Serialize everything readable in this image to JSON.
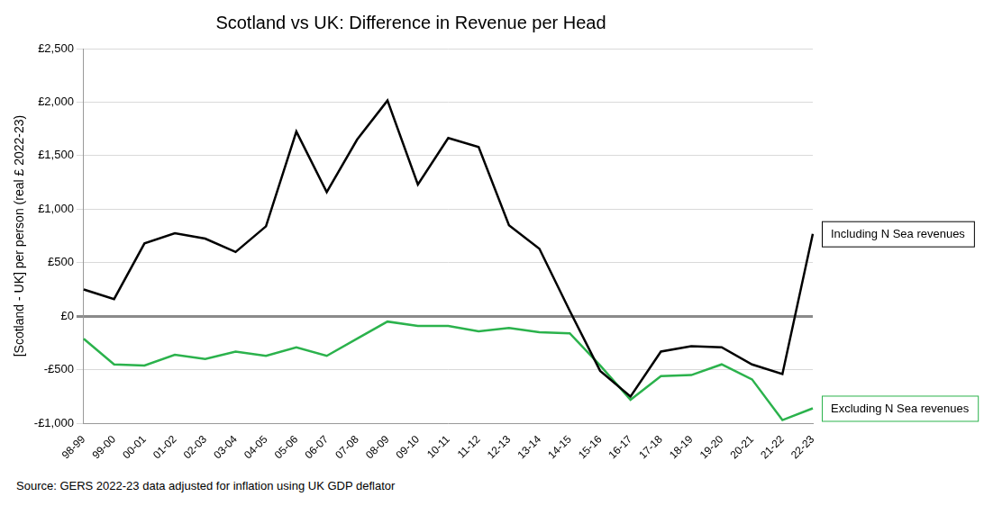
{
  "chart_data": {
    "type": "line",
    "title": "Scotland vs UK: Difference in Revenue per Head",
    "y_label": "[Scotland - UK] per person (real £ 2022-23)",
    "source": "Source: GERS 2022-23 data adjusted for inflation using UK GDP deflator",
    "categories": [
      "98-99",
      "99-00",
      "00-01",
      "01-02",
      "02-03",
      "03-04",
      "04-05",
      "05-06",
      "06-07",
      "07-08",
      "08-09",
      "09-10",
      "10-11",
      "11-12",
      "12-13",
      "13-14",
      "14-15",
      "15-16",
      "16-17",
      "17-18",
      "18-19",
      "19-20",
      "20-21",
      "21-22",
      "22-23"
    ],
    "series": [
      {
        "name": "Including N Sea revenues",
        "color": "#000000",
        "values": [
          250,
          160,
          680,
          775,
          725,
          600,
          840,
          1725,
          1160,
          1650,
          2015,
          1230,
          1665,
          1580,
          850,
          630,
          50,
          -510,
          -750,
          -330,
          -280,
          -290,
          -450,
          -540,
          770
        ]
      },
      {
        "name": "Excluding N Sea revenues",
        "color": "#2bb24c",
        "values": [
          -210,
          -450,
          -460,
          -360,
          -400,
          -330,
          -370,
          -290,
          -370,
          -210,
          -50,
          -90,
          -90,
          -140,
          -110,
          -150,
          -160,
          -460,
          -780,
          -560,
          -550,
          -450,
          -590,
          -970,
          -860
        ]
      }
    ],
    "ylim": [
      -1000,
      2500
    ],
    "yticks": [
      {
        "value": -1000,
        "label": "-£1,000"
      },
      {
        "value": -500,
        "label": "-£500"
      },
      {
        "value": 0,
        "label": "£0"
      },
      {
        "value": 500,
        "label": "£500"
      },
      {
        "value": 1000,
        "label": "£1,000"
      },
      {
        "value": 1500,
        "label": "£1,500"
      },
      {
        "value": 2000,
        "label": "£2,000"
      },
      {
        "value": 2500,
        "label": "£2,500"
      }
    ],
    "grid": true,
    "legend": false
  }
}
